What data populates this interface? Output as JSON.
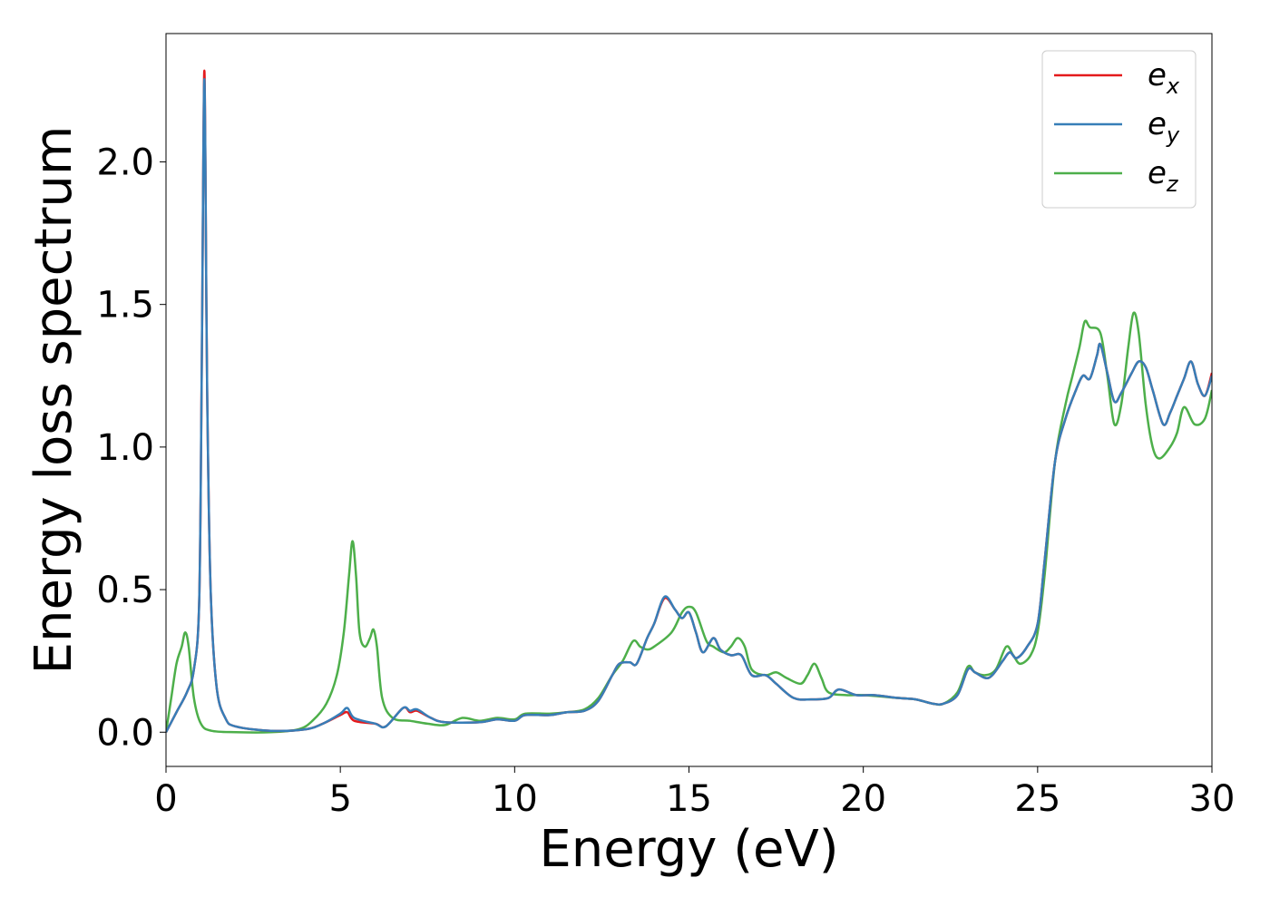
{
  "chart_data": {
    "type": "line",
    "xlabel": "Energy (eV)",
    "ylabel": "Energy loss spectrum",
    "xlim": [
      0,
      30
    ],
    "ylim": [
      -0.12,
      2.45
    ],
    "xticks": [
      "0",
      "5",
      "10",
      "15",
      "20",
      "25",
      "30"
    ],
    "yticks": [
      "0.0",
      "0.5",
      "1.0",
      "1.5",
      "2.0"
    ],
    "grid": false,
    "legend_position": "top-right",
    "series": [
      {
        "name": "e_x",
        "label_main": "e",
        "label_sub": "x",
        "color": "#e41a1c",
        "points": [
          [
            0,
            0
          ],
          [
            0.3,
            0.07
          ],
          [
            0.6,
            0.14
          ],
          [
            0.8,
            0.22
          ],
          [
            0.95,
            0.45
          ],
          [
            1.02,
            1.2
          ],
          [
            1.07,
            2.0
          ],
          [
            1.1,
            2.32
          ],
          [
            1.13,
            2.0
          ],
          [
            1.18,
            1.2
          ],
          [
            1.28,
            0.5
          ],
          [
            1.45,
            0.16
          ],
          [
            1.7,
            0.05
          ],
          [
            2.0,
            0.02
          ],
          [
            3.0,
            0.005
          ],
          [
            4.0,
            0.01
          ],
          [
            4.5,
            0.03
          ],
          [
            5.0,
            0.06
          ],
          [
            5.2,
            0.07
          ],
          [
            5.4,
            0.04
          ],
          [
            6.0,
            0.03
          ],
          [
            6.3,
            0.02
          ],
          [
            6.8,
            0.085
          ],
          [
            7.0,
            0.07
          ],
          [
            7.2,
            0.075
          ],
          [
            7.6,
            0.05
          ],
          [
            8.0,
            0.035
          ],
          [
            9.0,
            0.035
          ],
          [
            9.5,
            0.045
          ],
          [
            10.0,
            0.04
          ],
          [
            10.3,
            0.06
          ],
          [
            11.0,
            0.06
          ],
          [
            11.5,
            0.07
          ],
          [
            12.0,
            0.075
          ],
          [
            12.4,
            0.11
          ],
          [
            12.8,
            0.2
          ],
          [
            13.0,
            0.24
          ],
          [
            13.3,
            0.245
          ],
          [
            13.5,
            0.24
          ],
          [
            13.8,
            0.33
          ],
          [
            14.0,
            0.38
          ],
          [
            14.3,
            0.47
          ],
          [
            14.6,
            0.43
          ],
          [
            14.8,
            0.4
          ],
          [
            15.0,
            0.42
          ],
          [
            15.2,
            0.35
          ],
          [
            15.4,
            0.28
          ],
          [
            15.7,
            0.33
          ],
          [
            15.9,
            0.29
          ],
          [
            16.2,
            0.27
          ],
          [
            16.5,
            0.27
          ],
          [
            16.8,
            0.2
          ],
          [
            17.2,
            0.2
          ],
          [
            17.5,
            0.17
          ],
          [
            18.0,
            0.12
          ],
          [
            18.5,
            0.115
          ],
          [
            19.0,
            0.12
          ],
          [
            19.3,
            0.15
          ],
          [
            19.8,
            0.13
          ],
          [
            20.3,
            0.13
          ],
          [
            21.0,
            0.12
          ],
          [
            21.5,
            0.115
          ],
          [
            22.0,
            0.1
          ],
          [
            22.3,
            0.1
          ],
          [
            22.7,
            0.13
          ],
          [
            23.0,
            0.22
          ],
          [
            23.2,
            0.21
          ],
          [
            23.5,
            0.19
          ],
          [
            23.7,
            0.2
          ],
          [
            24.0,
            0.25
          ],
          [
            24.2,
            0.28
          ],
          [
            24.4,
            0.26
          ],
          [
            24.7,
            0.3
          ],
          [
            25.0,
            0.38
          ],
          [
            25.2,
            0.6
          ],
          [
            25.5,
            0.95
          ],
          [
            25.8,
            1.1
          ],
          [
            26.1,
            1.2
          ],
          [
            26.3,
            1.25
          ],
          [
            26.5,
            1.24
          ],
          [
            26.7,
            1.32
          ],
          [
            26.8,
            1.36
          ],
          [
            27.0,
            1.26
          ],
          [
            27.2,
            1.16
          ],
          [
            27.4,
            1.19
          ],
          [
            27.7,
            1.26
          ],
          [
            27.9,
            1.3
          ],
          [
            28.1,
            1.28
          ],
          [
            28.3,
            1.2
          ],
          [
            28.6,
            1.08
          ],
          [
            28.8,
            1.12
          ],
          [
            29.0,
            1.18
          ],
          [
            29.2,
            1.24
          ],
          [
            29.4,
            1.3
          ],
          [
            29.6,
            1.22
          ],
          [
            29.8,
            1.18
          ],
          [
            30.0,
            1.26
          ]
        ]
      },
      {
        "name": "e_y",
        "label_main": "e",
        "label_sub": "y",
        "color": "#377eb8",
        "points": [
          [
            0,
            0
          ],
          [
            0.3,
            0.07
          ],
          [
            0.6,
            0.14
          ],
          [
            0.8,
            0.22
          ],
          [
            0.95,
            0.45
          ],
          [
            1.02,
            1.2
          ],
          [
            1.07,
            2.0
          ],
          [
            1.1,
            2.29
          ],
          [
            1.13,
            2.0
          ],
          [
            1.18,
            1.2
          ],
          [
            1.28,
            0.5
          ],
          [
            1.45,
            0.16
          ],
          [
            1.7,
            0.05
          ],
          [
            2.0,
            0.02
          ],
          [
            3.0,
            0.005
          ],
          [
            4.0,
            0.01
          ],
          [
            4.5,
            0.03
          ],
          [
            5.0,
            0.065
          ],
          [
            5.2,
            0.085
          ],
          [
            5.4,
            0.05
          ],
          [
            6.0,
            0.03
          ],
          [
            6.3,
            0.02
          ],
          [
            6.8,
            0.085
          ],
          [
            7.0,
            0.075
          ],
          [
            7.2,
            0.08
          ],
          [
            7.6,
            0.05
          ],
          [
            8.0,
            0.035
          ],
          [
            9.0,
            0.035
          ],
          [
            9.5,
            0.045
          ],
          [
            10.0,
            0.04
          ],
          [
            10.3,
            0.06
          ],
          [
            11.0,
            0.06
          ],
          [
            11.5,
            0.07
          ],
          [
            12.0,
            0.075
          ],
          [
            12.4,
            0.11
          ],
          [
            12.8,
            0.2
          ],
          [
            13.0,
            0.24
          ],
          [
            13.3,
            0.245
          ],
          [
            13.5,
            0.24
          ],
          [
            13.8,
            0.33
          ],
          [
            14.0,
            0.38
          ],
          [
            14.3,
            0.475
          ],
          [
            14.6,
            0.43
          ],
          [
            14.8,
            0.4
          ],
          [
            15.0,
            0.42
          ],
          [
            15.2,
            0.35
          ],
          [
            15.4,
            0.28
          ],
          [
            15.7,
            0.33
          ],
          [
            15.9,
            0.29
          ],
          [
            16.2,
            0.27
          ],
          [
            16.5,
            0.27
          ],
          [
            16.8,
            0.2
          ],
          [
            17.2,
            0.2
          ],
          [
            17.5,
            0.17
          ],
          [
            18.0,
            0.12
          ],
          [
            18.5,
            0.115
          ],
          [
            19.0,
            0.12
          ],
          [
            19.3,
            0.15
          ],
          [
            19.8,
            0.13
          ],
          [
            20.3,
            0.13
          ],
          [
            21.0,
            0.12
          ],
          [
            21.5,
            0.115
          ],
          [
            22.0,
            0.1
          ],
          [
            22.3,
            0.1
          ],
          [
            22.7,
            0.13
          ],
          [
            23.0,
            0.22
          ],
          [
            23.2,
            0.21
          ],
          [
            23.5,
            0.19
          ],
          [
            23.7,
            0.2
          ],
          [
            24.0,
            0.25
          ],
          [
            24.2,
            0.28
          ],
          [
            24.4,
            0.26
          ],
          [
            24.7,
            0.3
          ],
          [
            25.0,
            0.38
          ],
          [
            25.2,
            0.6
          ],
          [
            25.5,
            0.95
          ],
          [
            25.8,
            1.1
          ],
          [
            26.1,
            1.2
          ],
          [
            26.3,
            1.25
          ],
          [
            26.5,
            1.24
          ],
          [
            26.7,
            1.32
          ],
          [
            26.8,
            1.36
          ],
          [
            27.0,
            1.26
          ],
          [
            27.2,
            1.16
          ],
          [
            27.4,
            1.19
          ],
          [
            27.7,
            1.26
          ],
          [
            27.9,
            1.3
          ],
          [
            28.1,
            1.28
          ],
          [
            28.3,
            1.2
          ],
          [
            28.6,
            1.08
          ],
          [
            28.8,
            1.12
          ],
          [
            29.0,
            1.18
          ],
          [
            29.2,
            1.24
          ],
          [
            29.4,
            1.3
          ],
          [
            29.6,
            1.22
          ],
          [
            29.8,
            1.18
          ],
          [
            30.0,
            1.25
          ]
        ]
      },
      {
        "name": "e_z",
        "label_main": "e",
        "label_sub": "z",
        "color": "#4daf4a",
        "points": [
          [
            0,
            0
          ],
          [
            0.15,
            0.12
          ],
          [
            0.3,
            0.24
          ],
          [
            0.45,
            0.3
          ],
          [
            0.55,
            0.35
          ],
          [
            0.65,
            0.3
          ],
          [
            0.8,
            0.12
          ],
          [
            1.0,
            0.03
          ],
          [
            1.3,
            0.005
          ],
          [
            2.0,
            0.0
          ],
          [
            3.0,
            0.0
          ],
          [
            3.8,
            0.01
          ],
          [
            4.2,
            0.04
          ],
          [
            4.6,
            0.1
          ],
          [
            4.9,
            0.2
          ],
          [
            5.1,
            0.35
          ],
          [
            5.25,
            0.55
          ],
          [
            5.35,
            0.67
          ],
          [
            5.45,
            0.55
          ],
          [
            5.55,
            0.35
          ],
          [
            5.7,
            0.3
          ],
          [
            5.85,
            0.33
          ],
          [
            5.95,
            0.36
          ],
          [
            6.05,
            0.3
          ],
          [
            6.2,
            0.12
          ],
          [
            6.5,
            0.05
          ],
          [
            7.0,
            0.04
          ],
          [
            7.5,
            0.03
          ],
          [
            8.0,
            0.025
          ],
          [
            8.5,
            0.05
          ],
          [
            9.0,
            0.04
          ],
          [
            9.5,
            0.05
          ],
          [
            10.0,
            0.045
          ],
          [
            10.3,
            0.065
          ],
          [
            11.0,
            0.065
          ],
          [
            11.5,
            0.07
          ],
          [
            12.0,
            0.08
          ],
          [
            12.4,
            0.12
          ],
          [
            12.8,
            0.2
          ],
          [
            13.1,
            0.25
          ],
          [
            13.4,
            0.32
          ],
          [
            13.6,
            0.3
          ],
          [
            13.8,
            0.29
          ],
          [
            14.0,
            0.3
          ],
          [
            14.5,
            0.35
          ],
          [
            14.8,
            0.42
          ],
          [
            15.0,
            0.44
          ],
          [
            15.2,
            0.42
          ],
          [
            15.5,
            0.32
          ],
          [
            15.7,
            0.3
          ],
          [
            16.0,
            0.28
          ],
          [
            16.2,
            0.3
          ],
          [
            16.4,
            0.33
          ],
          [
            16.6,
            0.3
          ],
          [
            16.8,
            0.22
          ],
          [
            17.2,
            0.2
          ],
          [
            17.5,
            0.21
          ],
          [
            17.8,
            0.19
          ],
          [
            18.2,
            0.17
          ],
          [
            18.4,
            0.2
          ],
          [
            18.6,
            0.24
          ],
          [
            18.8,
            0.19
          ],
          [
            19.0,
            0.14
          ],
          [
            19.5,
            0.13
          ],
          [
            20.0,
            0.13
          ],
          [
            21.0,
            0.12
          ],
          [
            21.5,
            0.115
          ],
          [
            22.0,
            0.1
          ],
          [
            22.3,
            0.1
          ],
          [
            22.7,
            0.14
          ],
          [
            23.0,
            0.23
          ],
          [
            23.2,
            0.21
          ],
          [
            23.5,
            0.2
          ],
          [
            23.8,
            0.22
          ],
          [
            24.1,
            0.3
          ],
          [
            24.3,
            0.27
          ],
          [
            24.5,
            0.24
          ],
          [
            24.8,
            0.27
          ],
          [
            25.0,
            0.35
          ],
          [
            25.2,
            0.55
          ],
          [
            25.5,
            0.95
          ],
          [
            25.8,
            1.15
          ],
          [
            26.0,
            1.25
          ],
          [
            26.2,
            1.35
          ],
          [
            26.35,
            1.44
          ],
          [
            26.5,
            1.42
          ],
          [
            26.8,
            1.4
          ],
          [
            27.0,
            1.25
          ],
          [
            27.2,
            1.08
          ],
          [
            27.4,
            1.15
          ],
          [
            27.6,
            1.35
          ],
          [
            27.75,
            1.47
          ],
          [
            27.9,
            1.4
          ],
          [
            28.1,
            1.15
          ],
          [
            28.3,
            1.0
          ],
          [
            28.5,
            0.96
          ],
          [
            28.8,
            1.0
          ],
          [
            29.0,
            1.05
          ],
          [
            29.2,
            1.14
          ],
          [
            29.5,
            1.08
          ],
          [
            29.8,
            1.1
          ],
          [
            30.0,
            1.2
          ]
        ]
      }
    ]
  }
}
